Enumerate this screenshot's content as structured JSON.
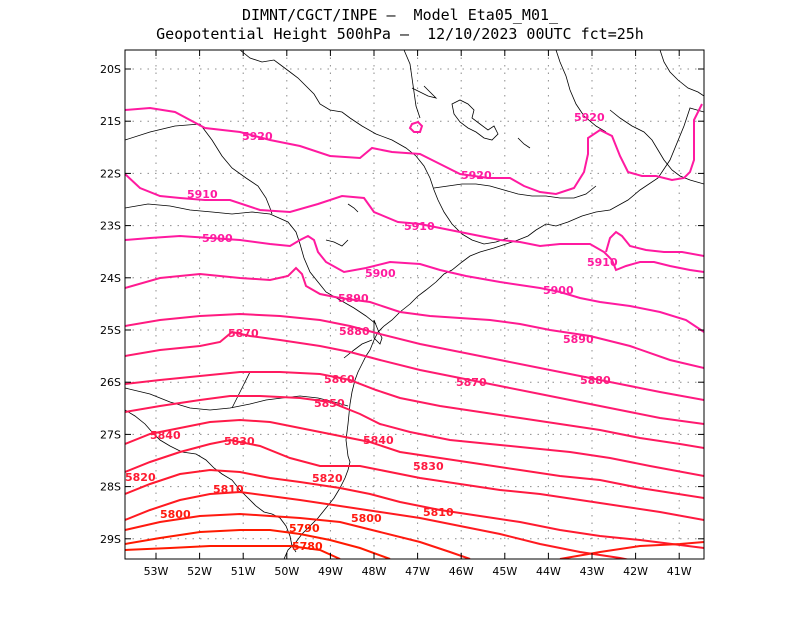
{
  "header": {
    "line1": "DIMNT/CGCT/INPE –  Model Eta05_M01_",
    "line2": "Geopotential Height 500hPa –  12/10/2023 00UTC fct=25h"
  },
  "axes": {
    "lon_ticks": [
      "53W",
      "52W",
      "51W",
      "50W",
      "49W",
      "48W",
      "47W",
      "46W",
      "45W",
      "44W",
      "43W",
      "42W",
      "41W"
    ],
    "lat_ticks": [
      "20S",
      "21S",
      "22S",
      "23S",
      "24S",
      "25S",
      "26S",
      "27S",
      "28S",
      "29S"
    ]
  },
  "colors": {
    "high": "#ff00b0",
    "low": "#ff1400",
    "coast": "#000000",
    "grid": "#8c8c8c"
  },
  "contour_labels": [
    {
      "text": "5920",
      "color": "#ff1aa0"
    },
    {
      "text": "5920",
      "color": "#ff1aa0"
    },
    {
      "text": "5920",
      "color": "#ff1aa0"
    },
    {
      "text": "5910",
      "color": "#ff1aa0"
    },
    {
      "text": "5910",
      "color": "#ff1aa0"
    },
    {
      "text": "5910",
      "color": "#ff1aa0"
    },
    {
      "text": "5900",
      "color": "#ff1aa0"
    },
    {
      "text": "5900",
      "color": "#ff1aa0"
    },
    {
      "text": "5900",
      "color": "#ff1aa0"
    },
    {
      "text": "5890",
      "color": "#ff1a90"
    },
    {
      "text": "5890",
      "color": "#ff1a90"
    },
    {
      "text": "5880",
      "color": "#ff1a80"
    },
    {
      "text": "5880",
      "color": "#ff1a80"
    },
    {
      "text": "5870",
      "color": "#ff1a70"
    },
    {
      "text": "5870",
      "color": "#ff1a70"
    },
    {
      "text": "5860",
      "color": "#ff1a60"
    },
    {
      "text": "5850",
      "color": "#ff1a58"
    },
    {
      "text": "5840",
      "color": "#ff1a48"
    },
    {
      "text": "5840",
      "color": "#ff1a48"
    },
    {
      "text": "5830",
      "color": "#ff1a40"
    },
    {
      "text": "5830",
      "color": "#ff1a40"
    },
    {
      "text": "5820",
      "color": "#ff1a30"
    },
    {
      "text": "5820",
      "color": "#ff1a30"
    },
    {
      "text": "5810",
      "color": "#ff1a20"
    },
    {
      "text": "5810",
      "color": "#ff1a20"
    },
    {
      "text": "5800",
      "color": "#ff1a10"
    },
    {
      "text": "5800",
      "color": "#ff1a10"
    },
    {
      "text": "5790",
      "color": "#ff1a00"
    },
    {
      "text": "5780",
      "color": "#ff1a00"
    }
  ]
}
